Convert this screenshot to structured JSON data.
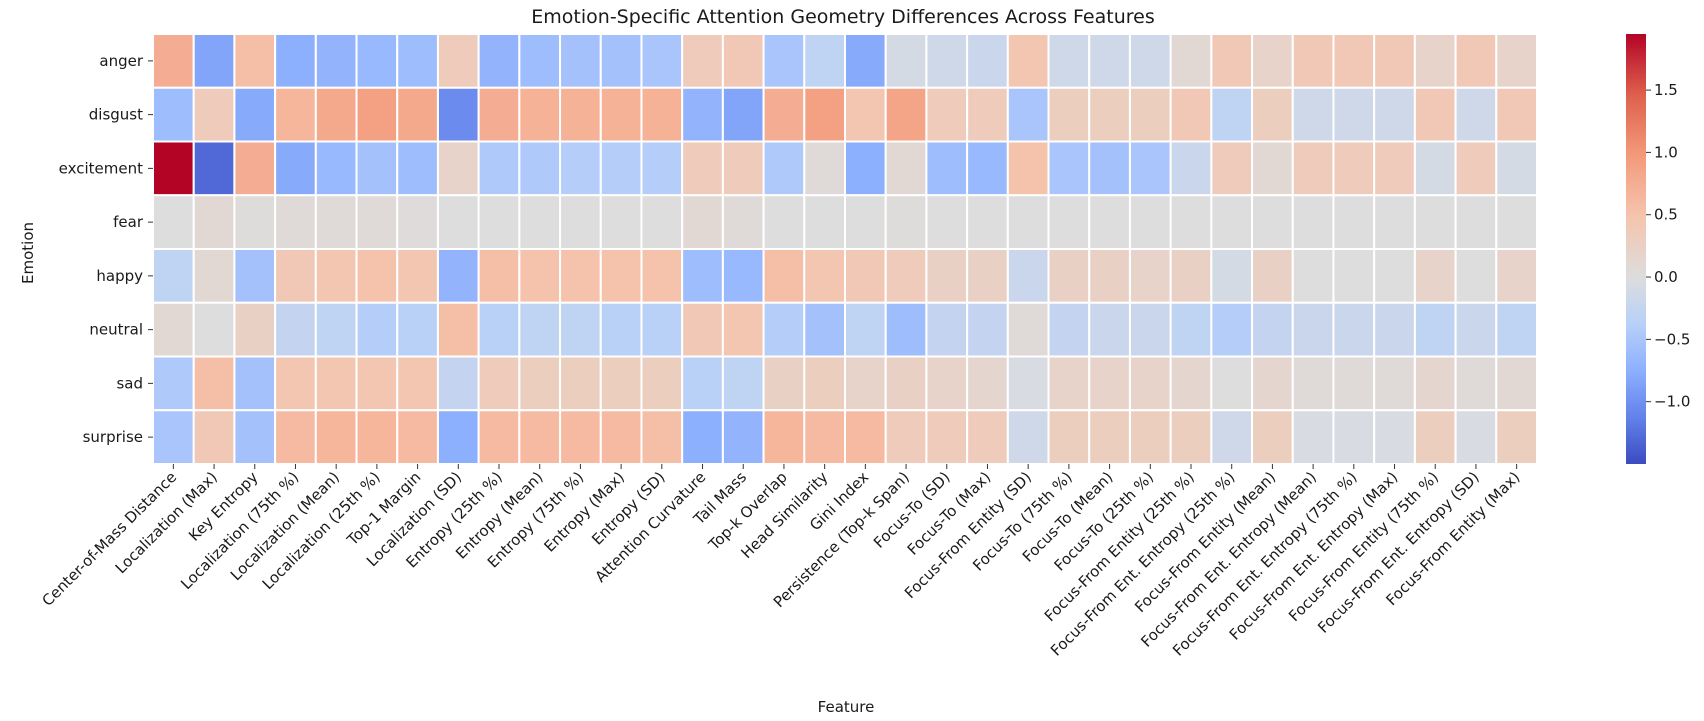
{
  "chart_data": {
    "type": "heatmap",
    "title": "Emotion-Specific Attention Geometry Differences Across Features",
    "xlabel": "Feature",
    "ylabel": "Emotion",
    "rows": [
      "anger",
      "disgust",
      "excitement",
      "fear",
      "happy",
      "neutral",
      "sad",
      "surprise"
    ],
    "columns": [
      "Center-of-Mass Distance",
      "Localization (Max)",
      "Key Entropy",
      "Localization (75th %)",
      "Localization (Mean)",
      "Localization (25th %)",
      "Top-1 Margin",
      "Localization (SD)",
      "Entropy (25th %)",
      "Entropy (Mean)",
      "Entropy (75th %)",
      "Entropy (Max)",
      "Entropy (SD)",
      "Attention Curvature",
      "Tail Mass",
      "Top-k Overlap",
      "Head Similarity",
      "Gini Index",
      "Persistence (Top-k Span)",
      "Focus-To (SD)",
      "Focus-To (Max)",
      "Focus-From Entity (SD)",
      "Focus-To (75th %)",
      "Focus-To (Mean)",
      "Focus-To (25th %)",
      "Focus-From Entity (25th %)",
      "Focus-From Ent. Entropy (25th %)",
      "Focus-From Entity (Mean)",
      "Focus-From Ent. Entropy (Mean)",
      "Focus-From Ent. Entropy (75th %)",
      "Focus-From Ent. Entropy (Max)",
      "Focus-From Entity (75th %)",
      "Focus-From Ent. Entropy (SD)",
      "Focus-From Entity (Max)"
    ],
    "values": [
      [
        0.75,
        -0.85,
        0.55,
        -0.75,
        -0.7,
        -0.65,
        -0.6,
        0.35,
        -0.7,
        -0.6,
        -0.55,
        -0.55,
        -0.5,
        0.35,
        0.4,
        -0.5,
        -0.3,
        -0.8,
        -0.1,
        -0.15,
        -0.2,
        0.45,
        -0.15,
        -0.15,
        -0.15,
        0.1,
        0.4,
        0.2,
        0.4,
        0.4,
        0.4,
        0.2,
        0.4,
        0.2
      ],
      [
        -0.6,
        0.35,
        -0.8,
        0.65,
        0.8,
        0.9,
        0.8,
        -1.05,
        0.75,
        0.7,
        0.7,
        0.7,
        0.7,
        -0.7,
        -0.85,
        0.75,
        0.9,
        0.45,
        0.85,
        0.35,
        0.35,
        -0.5,
        0.3,
        0.3,
        0.3,
        0.4,
        -0.3,
        0.3,
        -0.15,
        -0.15,
        -0.15,
        0.4,
        -0.15,
        0.4
      ],
      [
        1.95,
        -1.3,
        0.75,
        -0.8,
        -0.65,
        -0.55,
        -0.6,
        0.2,
        -0.45,
        -0.45,
        -0.4,
        -0.4,
        -0.4,
        0.35,
        0.35,
        -0.45,
        0.05,
        -0.75,
        0.1,
        -0.6,
        -0.65,
        0.5,
        -0.5,
        -0.55,
        -0.5,
        -0.2,
        0.35,
        0.1,
        0.35,
        0.35,
        0.35,
        -0.1,
        0.35,
        -0.1
      ],
      [
        0.0,
        0.1,
        0.02,
        0.05,
        0.05,
        0.05,
        0.03,
        0.0,
        0.0,
        0.0,
        0.0,
        0.0,
        0.0,
        0.1,
        0.05,
        0.0,
        0.0,
        0.0,
        0.02,
        0.0,
        0.0,
        0.0,
        0.0,
        0.0,
        0.0,
        0.0,
        0.0,
        0.0,
        0.0,
        0.0,
        0.0,
        0.0,
        0.0,
        0.0
      ],
      [
        -0.3,
        0.1,
        -0.55,
        0.4,
        0.45,
        0.5,
        0.45,
        -0.7,
        0.55,
        0.5,
        0.5,
        0.5,
        0.5,
        -0.6,
        -0.65,
        0.55,
        0.45,
        0.4,
        0.35,
        0.25,
        0.25,
        -0.2,
        0.25,
        0.25,
        0.2,
        0.25,
        -0.1,
        0.25,
        0.0,
        0.0,
        0.0,
        0.2,
        0.0,
        0.2
      ],
      [
        0.1,
        0.0,
        0.25,
        -0.25,
        -0.3,
        -0.4,
        -0.35,
        0.55,
        -0.35,
        -0.3,
        -0.3,
        -0.35,
        -0.35,
        0.4,
        0.45,
        -0.4,
        -0.55,
        -0.3,
        -0.6,
        -0.25,
        -0.25,
        0.05,
        -0.25,
        -0.2,
        -0.2,
        -0.3,
        -0.4,
        -0.25,
        -0.2,
        -0.2,
        -0.2,
        -0.3,
        -0.2,
        -0.3
      ],
      [
        -0.45,
        0.55,
        -0.55,
        0.45,
        0.45,
        0.45,
        0.45,
        -0.25,
        0.35,
        0.3,
        0.3,
        0.3,
        0.3,
        -0.35,
        -0.3,
        0.25,
        0.3,
        0.2,
        0.25,
        0.2,
        0.15,
        -0.05,
        0.2,
        0.2,
        0.2,
        0.15,
        0.0,
        0.15,
        0.05,
        0.05,
        0.05,
        0.15,
        0.05,
        0.1
      ],
      [
        -0.5,
        0.4,
        -0.55,
        0.6,
        0.65,
        0.65,
        0.6,
        -0.75,
        0.6,
        0.6,
        0.6,
        0.6,
        0.55,
        -0.75,
        -0.7,
        0.65,
        0.6,
        0.6,
        0.35,
        0.35,
        0.35,
        -0.15,
        0.3,
        0.3,
        0.3,
        0.3,
        -0.15,
        0.3,
        -0.05,
        -0.05,
        -0.05,
        0.3,
        -0.05,
        0.3
      ]
    ],
    "vmin": -1.5,
    "vmax": 1.95,
    "colormap": "coolwarm",
    "colorbar_ticks": [
      1.5,
      1.0,
      0.5,
      0.0,
      -0.5,
      -1.0
    ],
    "colorbar_tick_labels": [
      "1.5",
      "1.0",
      "0.5",
      "0.0",
      "−0.5",
      "−1.0"
    ],
    "grid": "white cell separators",
    "legend": "colorbar right"
  }
}
